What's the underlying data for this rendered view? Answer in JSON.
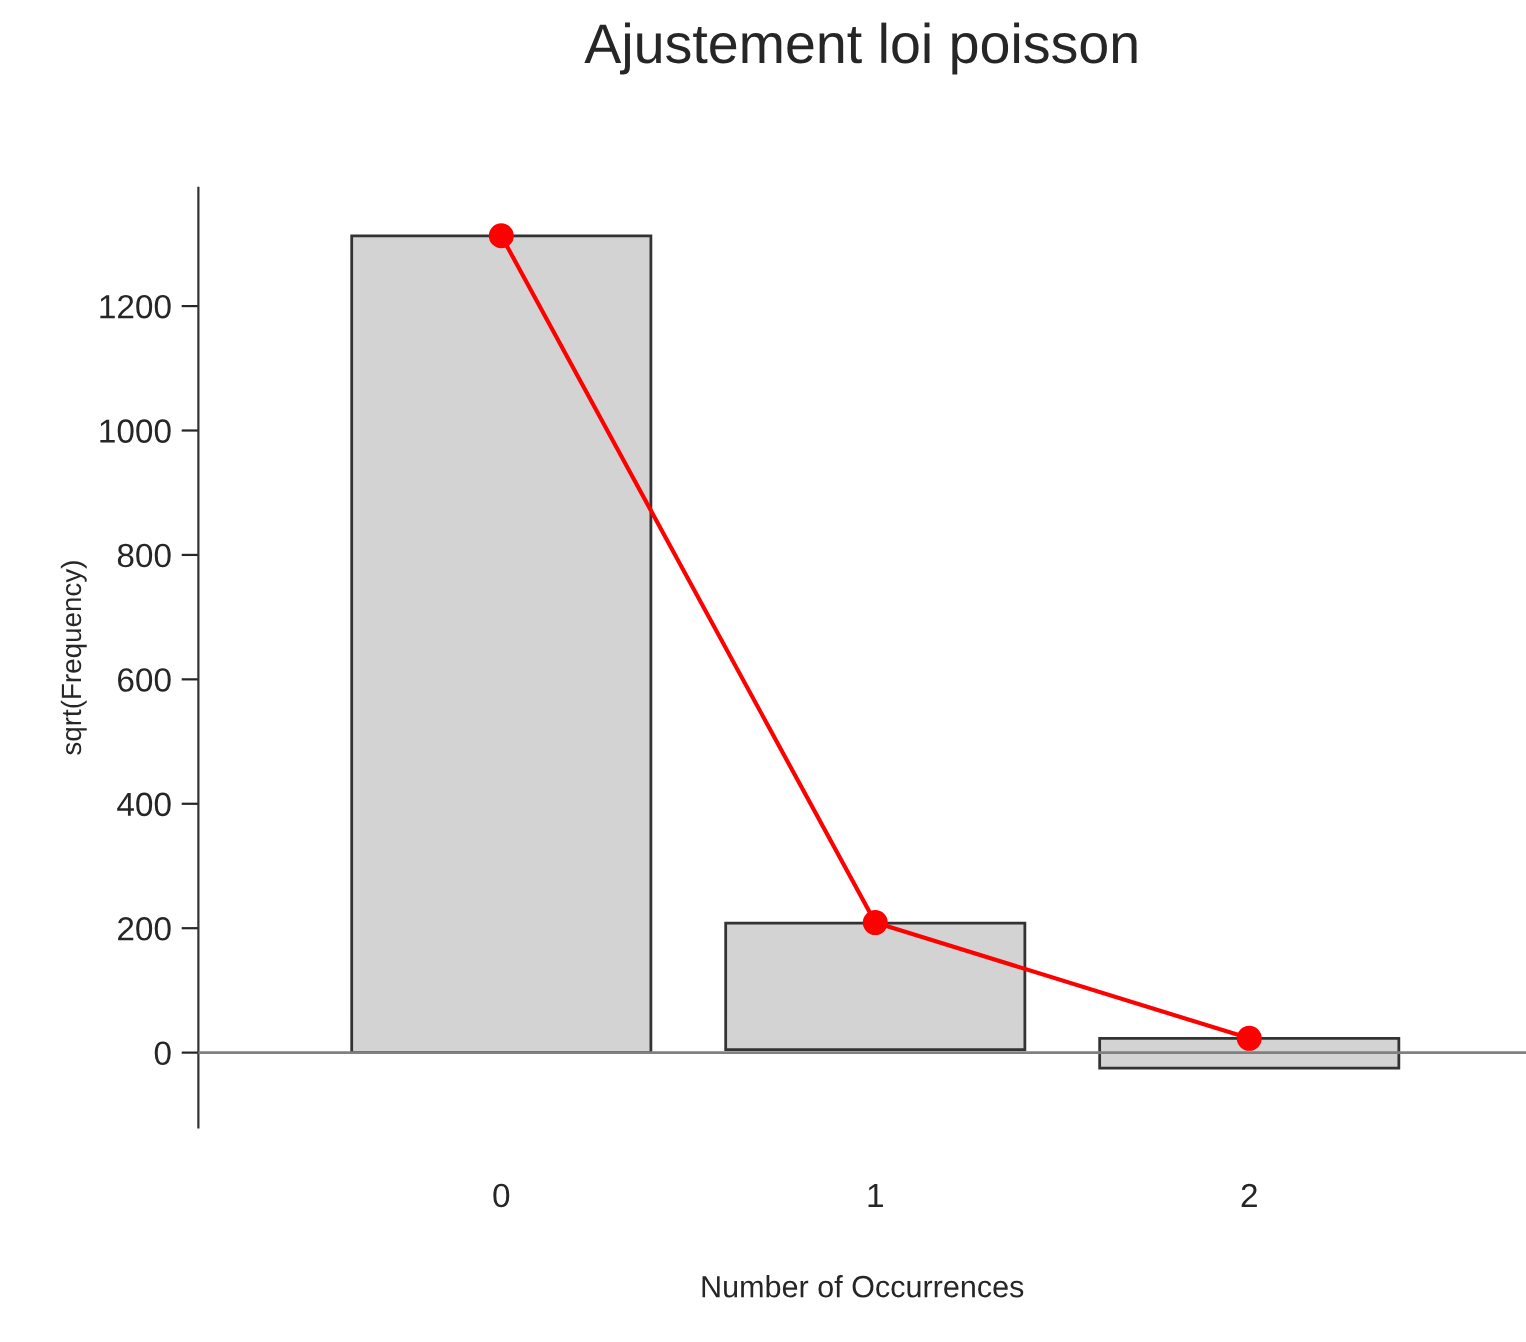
{
  "chart_data": {
    "type": "bar",
    "title": "Ajustement loi poisson",
    "xlabel": "Number of Occurrences",
    "ylabel": "sqrt(Frequency)",
    "categories": [
      "0",
      "1",
      "2"
    ],
    "series": [
      {
        "type": "bar",
        "color": "#d3d3d3",
        "values": [
          1313,
          203,
          48
        ],
        "base": [
          0,
          5,
          -25
        ]
      },
      {
        "type": "line",
        "color": "#ff0000",
        "values": [
          1313,
          209,
          23
        ],
        "marker": "circle"
      }
    ],
    "ylim": [
      -120,
      1390
    ],
    "yticks": [
      0,
      200,
      400,
      600,
      800,
      1000,
      1200
    ],
    "ref_lines": [
      {
        "axis": "y",
        "value": 0,
        "color": "#808080"
      }
    ],
    "grid": false,
    "legend": false
  }
}
